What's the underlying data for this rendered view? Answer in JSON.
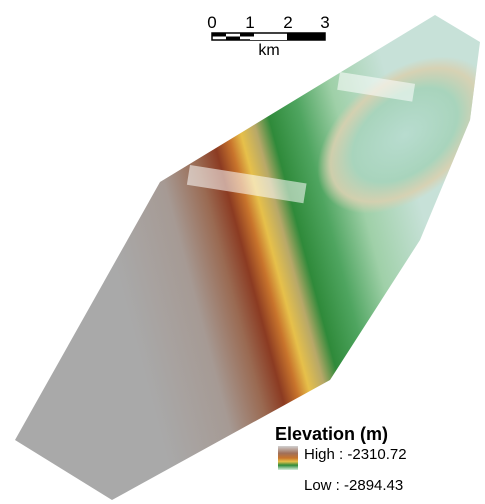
{
  "scale_bar": {
    "labels": [
      "0",
      "1",
      "2",
      "3"
    ],
    "unit": "km"
  },
  "legend": {
    "title": "Elevation (m)",
    "high": "High : -2310.72",
    "low": "Low : -2894.43"
  }
}
